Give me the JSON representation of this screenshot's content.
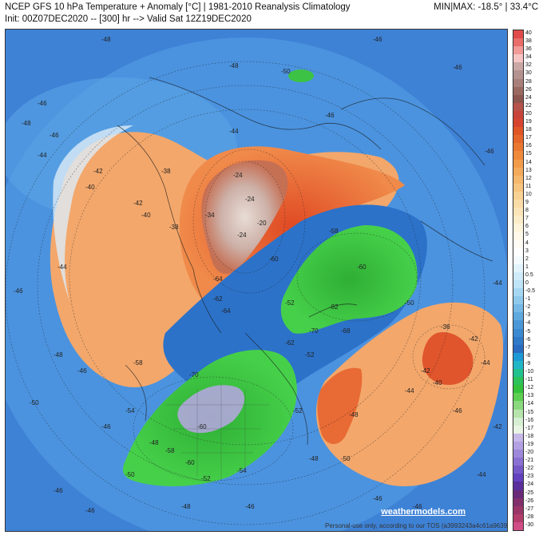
{
  "header": {
    "title_line1": "NCEP GFS 10 hPa Temperature + Anomaly [°C] | 1981-2010 Reanalysis Climatology",
    "title_line2": "Init: 00Z07DEC2020 -- [300] hr --> Valid Sat 12Z19DEC2020",
    "minmax": "MIN|MAX: -18.5° | 33.4°C"
  },
  "colors": {
    "ocean_bg": "#4a8bd6",
    "cold_green": "#35c23c",
    "very_cold_purple": "#b9a6e4",
    "warm_orange": "#f2a468",
    "hot_red": "#d94a25",
    "very_hot_tan": "#d8c6bd"
  },
  "colorbar": {
    "labels": [
      "40",
      "38",
      "36",
      "34",
      "32",
      "30",
      "28",
      "26",
      "24",
      "22",
      "20",
      "19",
      "18",
      "17",
      "16",
      "15",
      "14",
      "13",
      "12",
      "11",
      "10",
      "9",
      "8",
      "7",
      "6",
      "5",
      "4",
      "3",
      "2",
      "1",
      "0.5",
      "0",
      "-0.5",
      "-1",
      "-2",
      "-3",
      "-4",
      "-5",
      "-6",
      "-7",
      "-8",
      "-9",
      "-10",
      "-11",
      "-12",
      "-13",
      "-14",
      "-15",
      "-16",
      "-17",
      "-18",
      "-19",
      "-20",
      "-21",
      "-22",
      "-23",
      "-24",
      "-25",
      "-26",
      "-27",
      "-28",
      "-30"
    ],
    "colors": [
      "#e04a4a",
      "#e96d6a",
      "#f19a97",
      "#f6c5c3",
      "#c9a7a5",
      "#b49290",
      "#a88079",
      "#9a6a60",
      "#8d5750",
      "#b6534a",
      "#c8433a",
      "#d6432f",
      "#e05526",
      "#e5662a",
      "#ea7830",
      "#ee8a3a",
      "#f19b49",
      "#f3aa5a",
      "#f5b86c",
      "#f7c57f",
      "#f8d193",
      "#f9dca7",
      "#fbe5b8",
      "#fcedc9",
      "#fdf4da",
      "#fef9ea",
      "#fefcf4",
      "#ffffff",
      "#f4fbff",
      "#e2f3fc",
      "#cfeaf9",
      "#bfe3f7",
      "#a6d7f2",
      "#8fc9ec",
      "#76b9e6",
      "#5fa9df",
      "#4a98d8",
      "#3b89d1",
      "#2f7ac9",
      "#2a6cc2",
      "#1d9ad6",
      "#21b6c6",
      "#22c28f",
      "#2bc35a",
      "#34c23c",
      "#5ccf50",
      "#8ad97e",
      "#b6e4ac",
      "#d6eed1",
      "#e8f4e4",
      "#c7b8ea",
      "#b3a1e3",
      "#9e88db",
      "#8b70d3",
      "#7659c9",
      "#6341bf",
      "#5a2f9c",
      "#6a2a7a",
      "#82306c",
      "#9a3667",
      "#b33e6c",
      "#d14d86"
    ]
  },
  "contour_labels": [
    "-48",
    "-48",
    "-46",
    "-46",
    "-46",
    "-48",
    "-46",
    "-50",
    "-46",
    "-46",
    "-44",
    "-44",
    "-42",
    "-44",
    "-46",
    "-38",
    "-40",
    "-42",
    "-40",
    "-38",
    "-34",
    "-24",
    "-24",
    "-24",
    "-20",
    "-60",
    "-62",
    "-64",
    "-52",
    "-58",
    "-60",
    "-82",
    "-68",
    "-70",
    "-62",
    "-52",
    "-48",
    "-44",
    "-42",
    "-40",
    "-36",
    "-42",
    "-44",
    "-46",
    "-44",
    "-50",
    "-64",
    "-70",
    "-58",
    "-60",
    "-54",
    "-52",
    "-50",
    "-48",
    "-46",
    "-46",
    "-48",
    "-50",
    "-54",
    "-58",
    "-60",
    "-52",
    "-48",
    "-50",
    "-46",
    "-46",
    "-46",
    "-46",
    "-48",
    "-46",
    "-44",
    "-42"
  ],
  "footer": {
    "credit": "Personal-use only, according to our TOS (a3993243a4c61a9639)",
    "brand": "weathermodels.com"
  }
}
